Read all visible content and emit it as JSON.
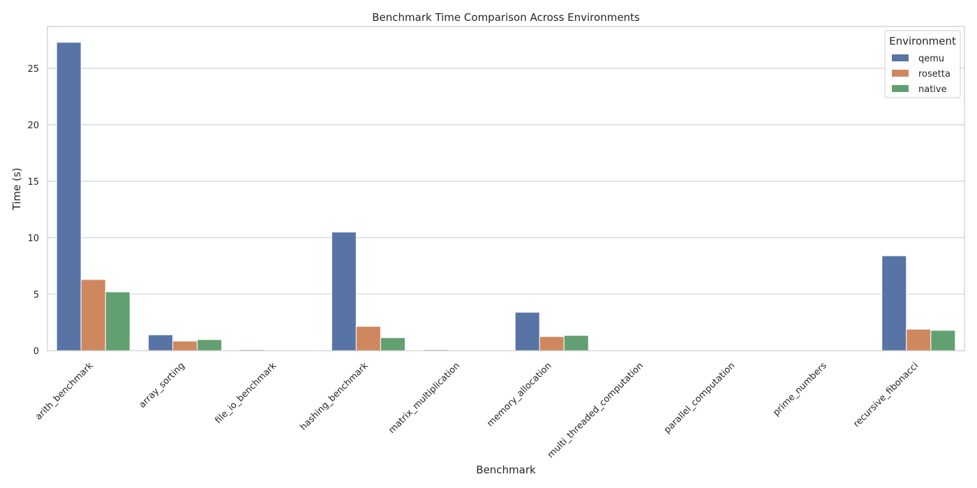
{
  "chart_data": {
    "type": "bar",
    "title": "Benchmark Time Comparison Across Environments",
    "xlabel": "Benchmark",
    "ylabel": "Time (s)",
    "ylim": [
      0,
      28.7
    ],
    "yticks": [
      0,
      5,
      10,
      15,
      20,
      25
    ],
    "grid": true,
    "legend": {
      "title": "Environment",
      "placement": "top-right"
    },
    "categories": [
      "arith_benchmark",
      "array_sorting",
      "file_io_benchmark",
      "hashing_benchmark",
      "matrix_multiplication",
      "memory_allocation",
      "multi_threaded_computation",
      "parallel_computation",
      "prime_numbers",
      "recursive_fibonacci"
    ],
    "series": [
      {
        "name": "qemu",
        "color": "#5874a5",
        "values": [
          27.3,
          1.4,
          0.08,
          10.5,
          0.08,
          3.4,
          0.04,
          0.03,
          0.03,
          8.4
        ]
      },
      {
        "name": "rosetta",
        "color": "#cf875f",
        "values": [
          6.3,
          0.85,
          0.04,
          2.15,
          0.03,
          1.25,
          0.02,
          0.02,
          0.02,
          1.9
        ]
      },
      {
        "name": "native",
        "color": "#62a071",
        "values": [
          5.2,
          0.98,
          0.03,
          1.15,
          0.02,
          1.35,
          0.02,
          0.02,
          0.02,
          1.8
        ]
      }
    ]
  }
}
